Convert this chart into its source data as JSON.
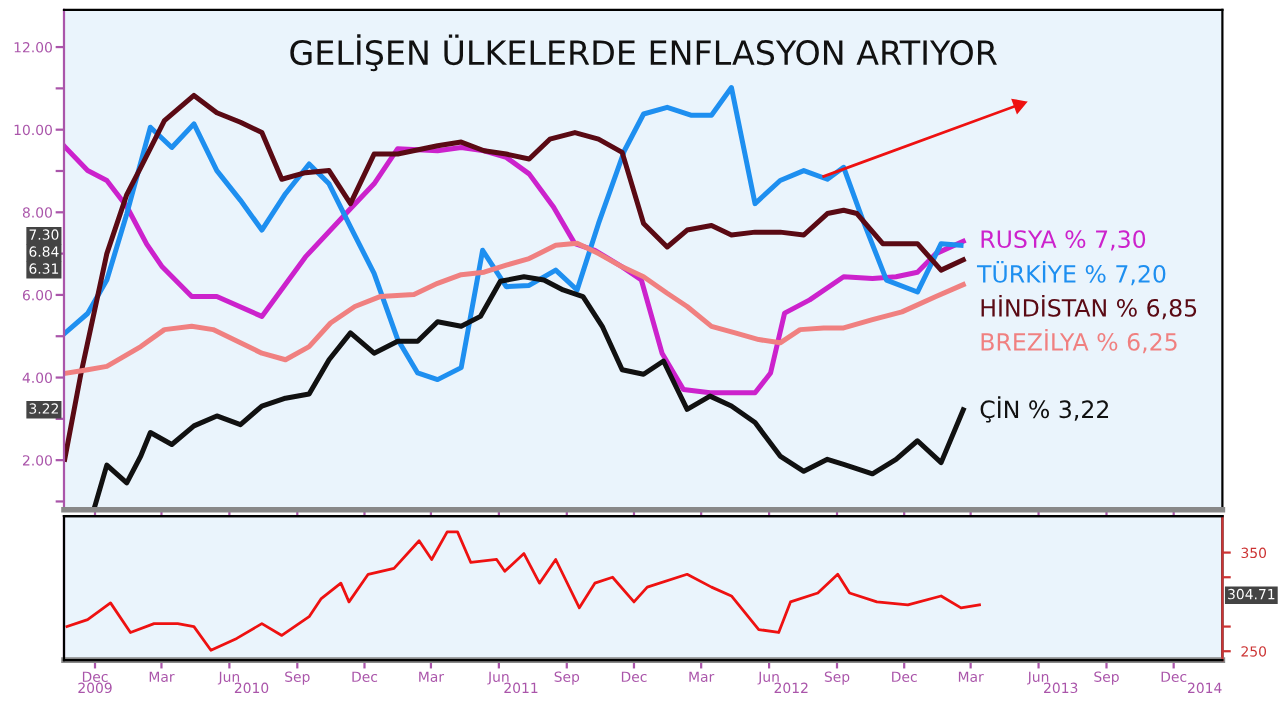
{
  "chart_data": [
    {
      "type": "line",
      "title": "GELİŞEN ÜLKELERDE ENFLASYON ARTIYOR",
      "xlim": [
        "2009-10-20",
        "2014-02-05"
      ],
      "xticks": [
        {
          "value": "2009-12-01",
          "label": null
        },
        {
          "value": "2010-03-01",
          "label": null
        },
        {
          "value": "2010-06-01",
          "label": null
        },
        {
          "value": "2010-09-01",
          "label": null
        },
        {
          "value": "2010-12-01",
          "label": null
        },
        {
          "value": "2011-03-01",
          "label": null
        },
        {
          "value": "2011-06-01",
          "label": null
        },
        {
          "value": "2011-09-01",
          "label": null
        },
        {
          "value": "2011-12-01",
          "label": null
        },
        {
          "value": "2012-03-01",
          "label": null
        },
        {
          "value": "2012-06-01",
          "label": null
        },
        {
          "value": "2012-09-01",
          "label": null
        },
        {
          "value": "2012-12-01",
          "label": null
        },
        {
          "value": "2013-03-01",
          "label": null
        },
        {
          "value": "2013-06-01",
          "label": null
        },
        {
          "value": "2013-09-01",
          "label": null
        },
        {
          "value": "2013-12-01",
          "label": null
        }
      ],
      "ylim": [
        0.8,
        12.9
      ],
      "yticks": [
        {
          "value": 1,
          "label": null
        },
        {
          "value": 2,
          "label": "2.00"
        },
        {
          "value": 3,
          "label": null
        },
        {
          "value": 4,
          "label": "4.00"
        },
        {
          "value": 5,
          "label": null
        },
        {
          "value": 6,
          "label": "6.00"
        },
        {
          "value": 7,
          "label": null
        },
        {
          "value": 8,
          "label": "8.00"
        },
        {
          "value": 9,
          "label": null
        },
        {
          "value": 10,
          "label": "10.00"
        },
        {
          "value": 11,
          "label": null
        },
        {
          "value": 12,
          "label": "12.00"
        }
      ],
      "tick_labels": "y",
      "grid": false,
      "legend": false,
      "marker": "none",
      "line_style": "solid",
      "series": [
        {
          "name": "RUSYA % 7,30",
          "color": "#cc22cc",
          "x": [
            "2009-10-21",
            "2009-11-21",
            "2009-12-17",
            "2010-01-13",
            "2010-02-09",
            "2010-03-02",
            "2010-04-11",
            "2010-05-15",
            "2010-07-15",
            "2010-09-12",
            "2010-11-10",
            "2010-12-14",
            "2011-01-15",
            "2011-03-10",
            "2011-04-11",
            "2011-05-12",
            "2011-06-11",
            "2011-07-12",
            "2011-08-14",
            "2011-09-12",
            "2011-10-09",
            "2011-11-15",
            "2011-12-11",
            "2012-01-08",
            "2012-02-06",
            "2012-03-13",
            "2012-04-11",
            "2012-05-13",
            "2012-06-03",
            "2012-06-22",
            "2012-07-26",
            "2012-09-10",
            "2012-10-19",
            "2012-11-20",
            "2012-12-19",
            "2013-01-13",
            "2013-02-19"
          ],
          "values": [
            9.59,
            9.01,
            8.77,
            8.14,
            7.23,
            6.68,
            5.96,
            5.96,
            5.48,
            6.92,
            8.05,
            8.69,
            9.54,
            9.49,
            9.57,
            9.49,
            9.33,
            8.93,
            8.13,
            7.24,
            7.08,
            6.68,
            6.36,
            4.59,
            3.71,
            3.63,
            3.63,
            3.63,
            4.11,
            5.56,
            5.88,
            6.44,
            6.4,
            6.44,
            6.55,
            7.0,
            7.3
          ]
        },
        {
          "name": "TÜRKİYE % 7,20",
          "color": "#1e8ff0",
          "x": [
            "2009-10-21",
            "2009-11-21",
            "2009-12-17",
            "2010-01-13",
            "2010-02-14",
            "2010-03-15",
            "2010-04-14",
            "2010-05-15",
            "2010-06-16",
            "2010-07-15",
            "2010-08-16",
            "2010-09-17",
            "2010-10-14",
            "2010-11-12",
            "2010-12-14",
            "2011-01-15",
            "2011-02-11",
            "2011-03-10",
            "2011-04-11",
            "2011-05-10",
            "2011-06-11",
            "2011-07-12",
            "2011-08-17",
            "2011-09-15",
            "2011-10-14",
            "2011-11-18",
            "2011-12-14",
            "2012-01-15",
            "2012-02-16",
            "2012-03-15",
            "2012-04-11",
            "2012-05-13",
            "2012-06-16",
            "2012-07-18",
            "2012-08-19",
            "2012-09-10",
            "2012-10-06",
            "2012-11-07",
            "2012-12-19",
            "2013-01-20",
            "2013-02-16"
          ],
          "values": [
            5.07,
            5.55,
            6.36,
            7.96,
            10.06,
            9.57,
            10.14,
            9.01,
            8.29,
            7.57,
            8.45,
            9.17,
            8.69,
            7.65,
            6.52,
            4.92,
            4.11,
            3.95,
            4.24,
            7.08,
            6.2,
            6.23,
            6.6,
            6.12,
            7.73,
            9.49,
            10.38,
            10.54,
            10.35,
            10.35,
            11.02,
            8.21,
            8.77,
            9.01,
            8.8,
            9.09,
            7.81,
            6.36,
            6.07,
            7.24,
            7.2
          ]
        },
        {
          "name": "HİNDİSTAN % 6,85",
          "color": "#5a0a14",
          "x": [
            "2009-10-21",
            "2009-11-12",
            "2009-12-17",
            "2010-01-13",
            "2010-02-01",
            "2010-03-05",
            "2010-04-14",
            "2010-05-15",
            "2010-06-16",
            "2010-07-15",
            "2010-08-11",
            "2010-09-12",
            "2010-10-14",
            "2010-11-12",
            "2010-12-14",
            "2011-01-15",
            "2011-03-10",
            "2011-04-11",
            "2011-05-12",
            "2011-06-11",
            "2011-07-12",
            "2011-08-09",
            "2011-09-12",
            "2011-10-14",
            "2011-11-15",
            "2011-12-14",
            "2012-01-15",
            "2012-02-11",
            "2012-03-15",
            "2012-04-11",
            "2012-05-13",
            "2012-06-16",
            "2012-07-18",
            "2012-08-19",
            "2012-09-10",
            "2012-09-28",
            "2012-11-02",
            "2012-12-19",
            "2013-01-20",
            "2013-02-19"
          ],
          "values": [
            2.02,
            4.1,
            7.0,
            8.43,
            9.09,
            10.22,
            10.83,
            10.41,
            10.18,
            9.93,
            8.8,
            8.96,
            9.01,
            8.21,
            9.41,
            9.41,
            9.61,
            9.7,
            9.49,
            9.41,
            9.29,
            9.77,
            9.93,
            9.77,
            9.45,
            7.73,
            7.16,
            7.57,
            7.68,
            7.45,
            7.52,
            7.52,
            7.45,
            7.97,
            8.05,
            7.97,
            7.24,
            7.24,
            6.6,
            6.85
          ]
        },
        {
          "name": "BREZİLYA % 6,25",
          "color": "#f08080",
          "x": [
            "2009-10-21",
            "2009-11-21",
            "2009-12-17",
            "2010-02-01",
            "2010-03-05",
            "2010-04-11",
            "2010-05-10",
            "2010-06-16",
            "2010-07-15",
            "2010-08-16",
            "2010-09-17",
            "2010-10-16",
            "2010-11-18",
            "2010-12-22",
            "2011-02-06",
            "2011-03-10",
            "2011-04-11",
            "2011-05-12",
            "2011-06-11",
            "2011-07-12",
            "2011-08-17",
            "2011-09-15",
            "2011-10-14",
            "2011-11-15",
            "2011-12-14",
            "2012-01-15",
            "2012-02-11",
            "2012-03-15",
            "2012-04-16",
            "2012-05-18",
            "2012-06-16",
            "2012-07-13",
            "2012-08-14",
            "2012-09-10",
            "2012-10-19",
            "2012-11-28",
            "2013-01-13",
            "2013-02-19"
          ],
          "values": [
            4.1,
            4.19,
            4.27,
            4.75,
            5.16,
            5.24,
            5.16,
            4.84,
            4.59,
            4.43,
            4.75,
            5.32,
            5.72,
            5.96,
            6.01,
            6.28,
            6.49,
            6.55,
            6.72,
            6.88,
            7.2,
            7.25,
            7.0,
            6.68,
            6.44,
            6.04,
            5.72,
            5.24,
            5.08,
            4.92,
            4.84,
            5.16,
            5.2,
            5.2,
            5.4,
            5.59,
            5.96,
            6.25
          ]
        },
        {
          "name": "ÇİN % 3,22",
          "color": "#111111",
          "x": [
            "2009-12-01",
            "2009-12-17",
            "2010-01-13",
            "2010-02-01",
            "2010-02-14",
            "2010-03-15",
            "2010-04-14",
            "2010-05-15",
            "2010-06-16",
            "2010-07-15",
            "2010-08-16",
            "2010-09-17",
            "2010-10-14",
            "2010-11-12",
            "2010-12-14",
            "2011-01-15",
            "2011-02-11",
            "2011-03-10",
            "2011-04-11",
            "2011-05-07",
            "2011-06-03",
            "2011-07-05",
            "2011-08-01",
            "2011-08-27",
            "2011-09-23",
            "2011-10-19",
            "2011-11-15",
            "2011-12-14",
            "2012-01-10",
            "2012-02-11",
            "2012-03-13",
            "2012-04-11",
            "2012-05-13",
            "2012-06-16",
            "2012-07-18",
            "2012-08-19",
            "2012-09-10",
            "2012-10-19",
            "2012-11-20",
            "2012-12-19",
            "2013-01-20",
            "2013-02-19"
          ],
          "values": [
            0.9,
            1.88,
            1.45,
            2.1,
            2.67,
            2.38,
            2.83,
            3.07,
            2.86,
            3.31,
            3.5,
            3.6,
            4.43,
            5.08,
            4.59,
            4.88,
            4.88,
            5.35,
            5.24,
            5.48,
            6.33,
            6.44,
            6.36,
            6.12,
            5.96,
            5.24,
            4.19,
            4.08,
            4.4,
            3.23,
            3.55,
            3.31,
            2.91,
            2.1,
            1.73,
            2.02,
            1.9,
            1.67,
            2.02,
            2.47,
            1.94,
            3.22
          ]
        },
        {
          "color": "#ee1111",
          "marker": "triangle",
          "x": [
            "2012-08-14",
            "2013-05-05"
          ],
          "values": [
            8.87,
            10.6
          ]
        }
      ],
      "annotations": [
        "7.30",
        "6.84",
        "6.31",
        "3.22"
      ]
    },
    {
      "type": "line",
      "xlim": [
        "2009-10-20",
        "2014-02-05"
      ],
      "xticks": [
        {
          "value": "2009-12-01",
          "label": "Dec"
        },
        {
          "value": "2010-03-01",
          "label": "Mar"
        },
        {
          "value": "2010-06-01",
          "label": "Jun"
        },
        {
          "value": "2010-09-01",
          "label": "Sep"
        },
        {
          "value": "2010-12-01",
          "label": "Dec"
        },
        {
          "value": "2011-03-01",
          "label": "Mar"
        },
        {
          "value": "2011-06-01",
          "label": "Jun"
        },
        {
          "value": "2011-09-01",
          "label": "Sep"
        },
        {
          "value": "2011-12-01",
          "label": "Dec"
        },
        {
          "value": "2012-03-01",
          "label": "Mar"
        },
        {
          "value": "2012-06-01",
          "label": "Jun"
        },
        {
          "value": "2012-09-01",
          "label": "Sep"
        },
        {
          "value": "2012-12-01",
          "label": "Dec"
        },
        {
          "value": "2013-03-01",
          "label": "Mar"
        },
        {
          "value": "2013-06-01",
          "label": "Jun"
        },
        {
          "value": "2013-09-01",
          "label": "Sep"
        },
        {
          "value": "2013-12-01",
          "label": "Dec"
        }
      ],
      "y2lim": [
        241,
        387
      ],
      "y2ticks": [
        250,
        {
          "value": 275,
          "label": null
        },
        {
          "value": 325,
          "label": null
        },
        350
      ],
      "grid": false,
      "legend": false,
      "marker": "none",
      "line_style": "solid",
      "series": [
        {
          "color": "#ee1111",
          "axis": "y2",
          "x": [
            "2009-10-24",
            "2009-11-21",
            "2009-12-22",
            "2010-01-18",
            "2010-02-19",
            "2010-03-23",
            "2010-04-14",
            "2010-05-07",
            "2010-06-11",
            "2010-07-15",
            "2010-08-11",
            "2010-09-17",
            "2010-10-03",
            "2010-10-30",
            "2010-11-10",
            "2010-12-06",
            "2011-01-10",
            "2011-02-13",
            "2011-03-02",
            "2011-03-23",
            "2011-04-06",
            "2011-04-24",
            "2011-05-29",
            "2011-06-09",
            "2011-07-05",
            "2011-07-26",
            "2011-08-17",
            "2011-09-18",
            "2011-10-09",
            "2011-11-02",
            "2011-12-01",
            "2011-12-19",
            "2012-02-11",
            "2012-03-15",
            "2012-04-11",
            "2012-05-18",
            "2012-06-14",
            "2012-06-30",
            "2012-08-06",
            "2012-09-02",
            "2012-09-18",
            "2012-10-25",
            "2012-12-06",
            "2013-01-20",
            "2013-02-16",
            "2013-03-13"
          ],
          "values": [
            275,
            282,
            299,
            269,
            278,
            278,
            275,
            251,
            263,
            278,
            266,
            285,
            303,
            319,
            300,
            328,
            334,
            362,
            343,
            371,
            371,
            340,
            343,
            331,
            349,
            319,
            343,
            294,
            319,
            325,
            300,
            315,
            328,
            315,
            306,
            272,
            269,
            300,
            309,
            328,
            309,
            300,
            297,
            306,
            294,
            297
          ]
        }
      ],
      "x2lim": [
        "2009-10-20",
        "2014-02-05"
      ],
      "x2ticks": [
        {
          "value": "2009-12-01",
          "label": "2009"
        },
        {
          "value": "2010-07-01",
          "label": "2010"
        },
        {
          "value": "2011-07-01",
          "label": "2011"
        },
        {
          "value": "2012-07-01",
          "label": "2012"
        },
        {
          "value": "2013-07-01",
          "label": "2013"
        },
        {
          "value": "2014-01-12",
          "label": "2014"
        }
      ],
      "annotations": [
        "304.71"
      ]
    }
  ]
}
